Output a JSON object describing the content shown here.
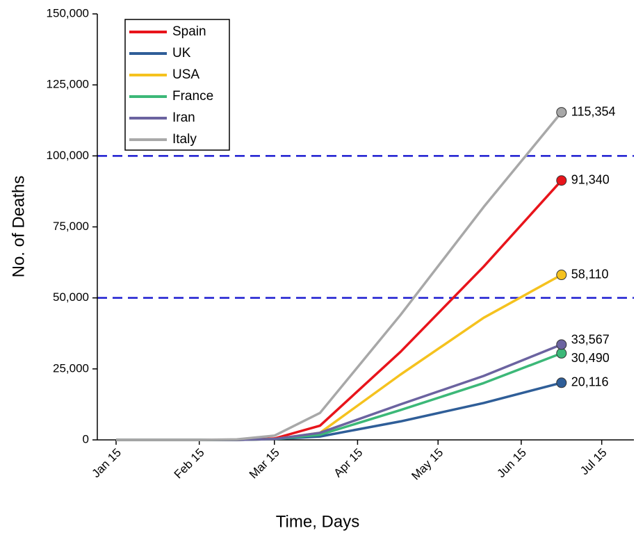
{
  "chart_data": {
    "type": "line",
    "x_label": "Time, Days",
    "y_label": "No. of Deaths",
    "x": [
      "Jan 15",
      "Feb 15",
      "Mar 1",
      "Mar 15",
      "Apr 1",
      "May 1",
      "Jun 1",
      "Jun 30"
    ],
    "series": [
      {
        "name": "Spain",
        "color": "#e8141b",
        "values": [
          0,
          0,
          0,
          500,
          5000,
          31000,
          61000,
          91340
        ],
        "value_labels": [
          null,
          null,
          null,
          null,
          null,
          null,
          null,
          "91,340"
        ]
      },
      {
        "name": "UK",
        "color": "#2f5e98",
        "values": [
          0,
          0,
          0,
          300,
          1200,
          6500,
          13000,
          20116
        ],
        "value_labels": [
          null,
          null,
          null,
          null,
          null,
          null,
          null,
          "20,116"
        ]
      },
      {
        "name": "USA",
        "color": "#f5c21e",
        "values": [
          0,
          0,
          0,
          300,
          2500,
          23000,
          43000,
          58110
        ],
        "value_labels": [
          null,
          null,
          null,
          null,
          null,
          null,
          null,
          "58,110"
        ]
      },
      {
        "name": "France",
        "color": "#3cb878",
        "values": [
          0,
          0,
          0,
          300,
          1800,
          10500,
          20000,
          30490
        ],
        "value_labels": [
          null,
          null,
          null,
          null,
          null,
          null,
          null,
          "30,490"
        ]
      },
      {
        "name": "Iran",
        "color": "#6b63a0",
        "values": [
          0,
          0,
          0,
          300,
          2500,
          12500,
          22500,
          33567
        ],
        "value_labels": [
          null,
          null,
          null,
          null,
          null,
          null,
          null,
          "33,567"
        ]
      },
      {
        "name": "Italy",
        "color": "#a8a8a8",
        "values": [
          0,
          0,
          200,
          1500,
          9500,
          44000,
          82000,
          115354
        ],
        "value_labels": [
          null,
          null,
          null,
          null,
          null,
          null,
          null,
          "115,354"
        ]
      }
    ],
    "xlim": [
      "Jan 8",
      "Jul 27"
    ],
    "xticks": [
      "Jan 15",
      "Feb 15",
      "Mar 15",
      "Apr 15",
      "May 15",
      "Jun 15",
      "Jul 15"
    ],
    "ylim": [
      0,
      150000
    ],
    "yticks": [
      0,
      {
        "value": 25000,
        "label": "25,000"
      },
      {
        "value": 50000,
        "label": "50,000"
      },
      {
        "value": 75000,
        "label": "75,000"
      },
      {
        "value": 100000,
        "label": "100,000"
      },
      {
        "value": 125000,
        "label": "125,000"
      },
      {
        "value": 150000,
        "label": "150,000"
      }
    ],
    "reference_lines": [
      50000,
      100000
    ],
    "reference_color": "#1a1ad0",
    "legend": "upper left"
  }
}
